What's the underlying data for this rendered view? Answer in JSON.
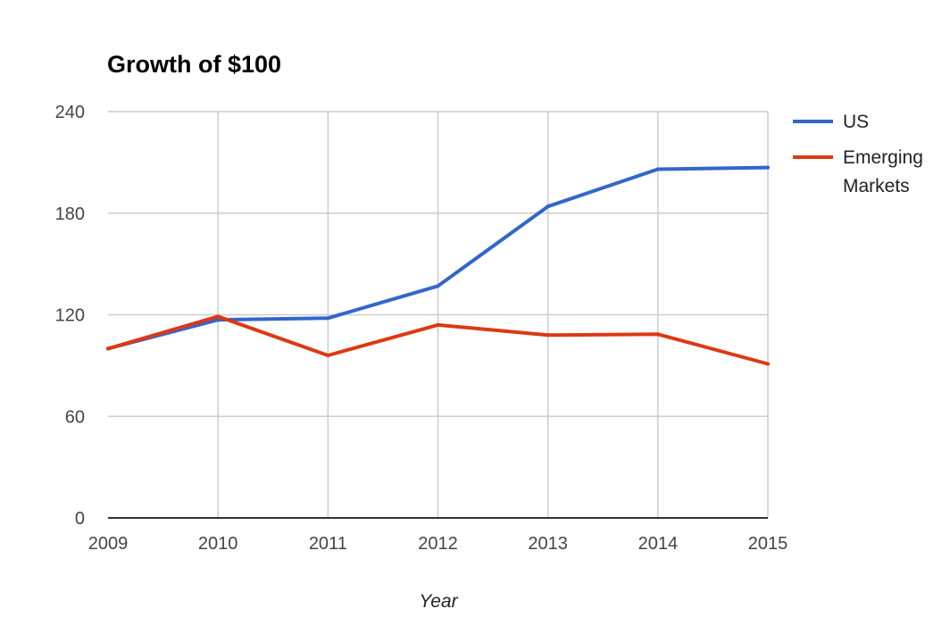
{
  "chart_data": {
    "type": "line",
    "title": "Growth of $100",
    "xlabel": "Year",
    "ylabel": "",
    "x": [
      "2009",
      "2010",
      "2011",
      "2012",
      "2013",
      "2014",
      "2015"
    ],
    "y_ticks": [
      "0",
      "60",
      "120",
      "180",
      "240"
    ],
    "ylim": [
      0,
      240
    ],
    "grid": true,
    "legend_position": "right",
    "series": [
      {
        "name": "US",
        "color": "#3366cc",
        "values": [
          100,
          117,
          118,
          137,
          184,
          206,
          207
        ]
      },
      {
        "name": "Emerging Markets",
        "legend_lines": [
          "Emerging",
          "Markets"
        ],
        "color": "#dc3912",
        "values": [
          100,
          119,
          96,
          114,
          108,
          108.5,
          91
        ]
      }
    ]
  }
}
